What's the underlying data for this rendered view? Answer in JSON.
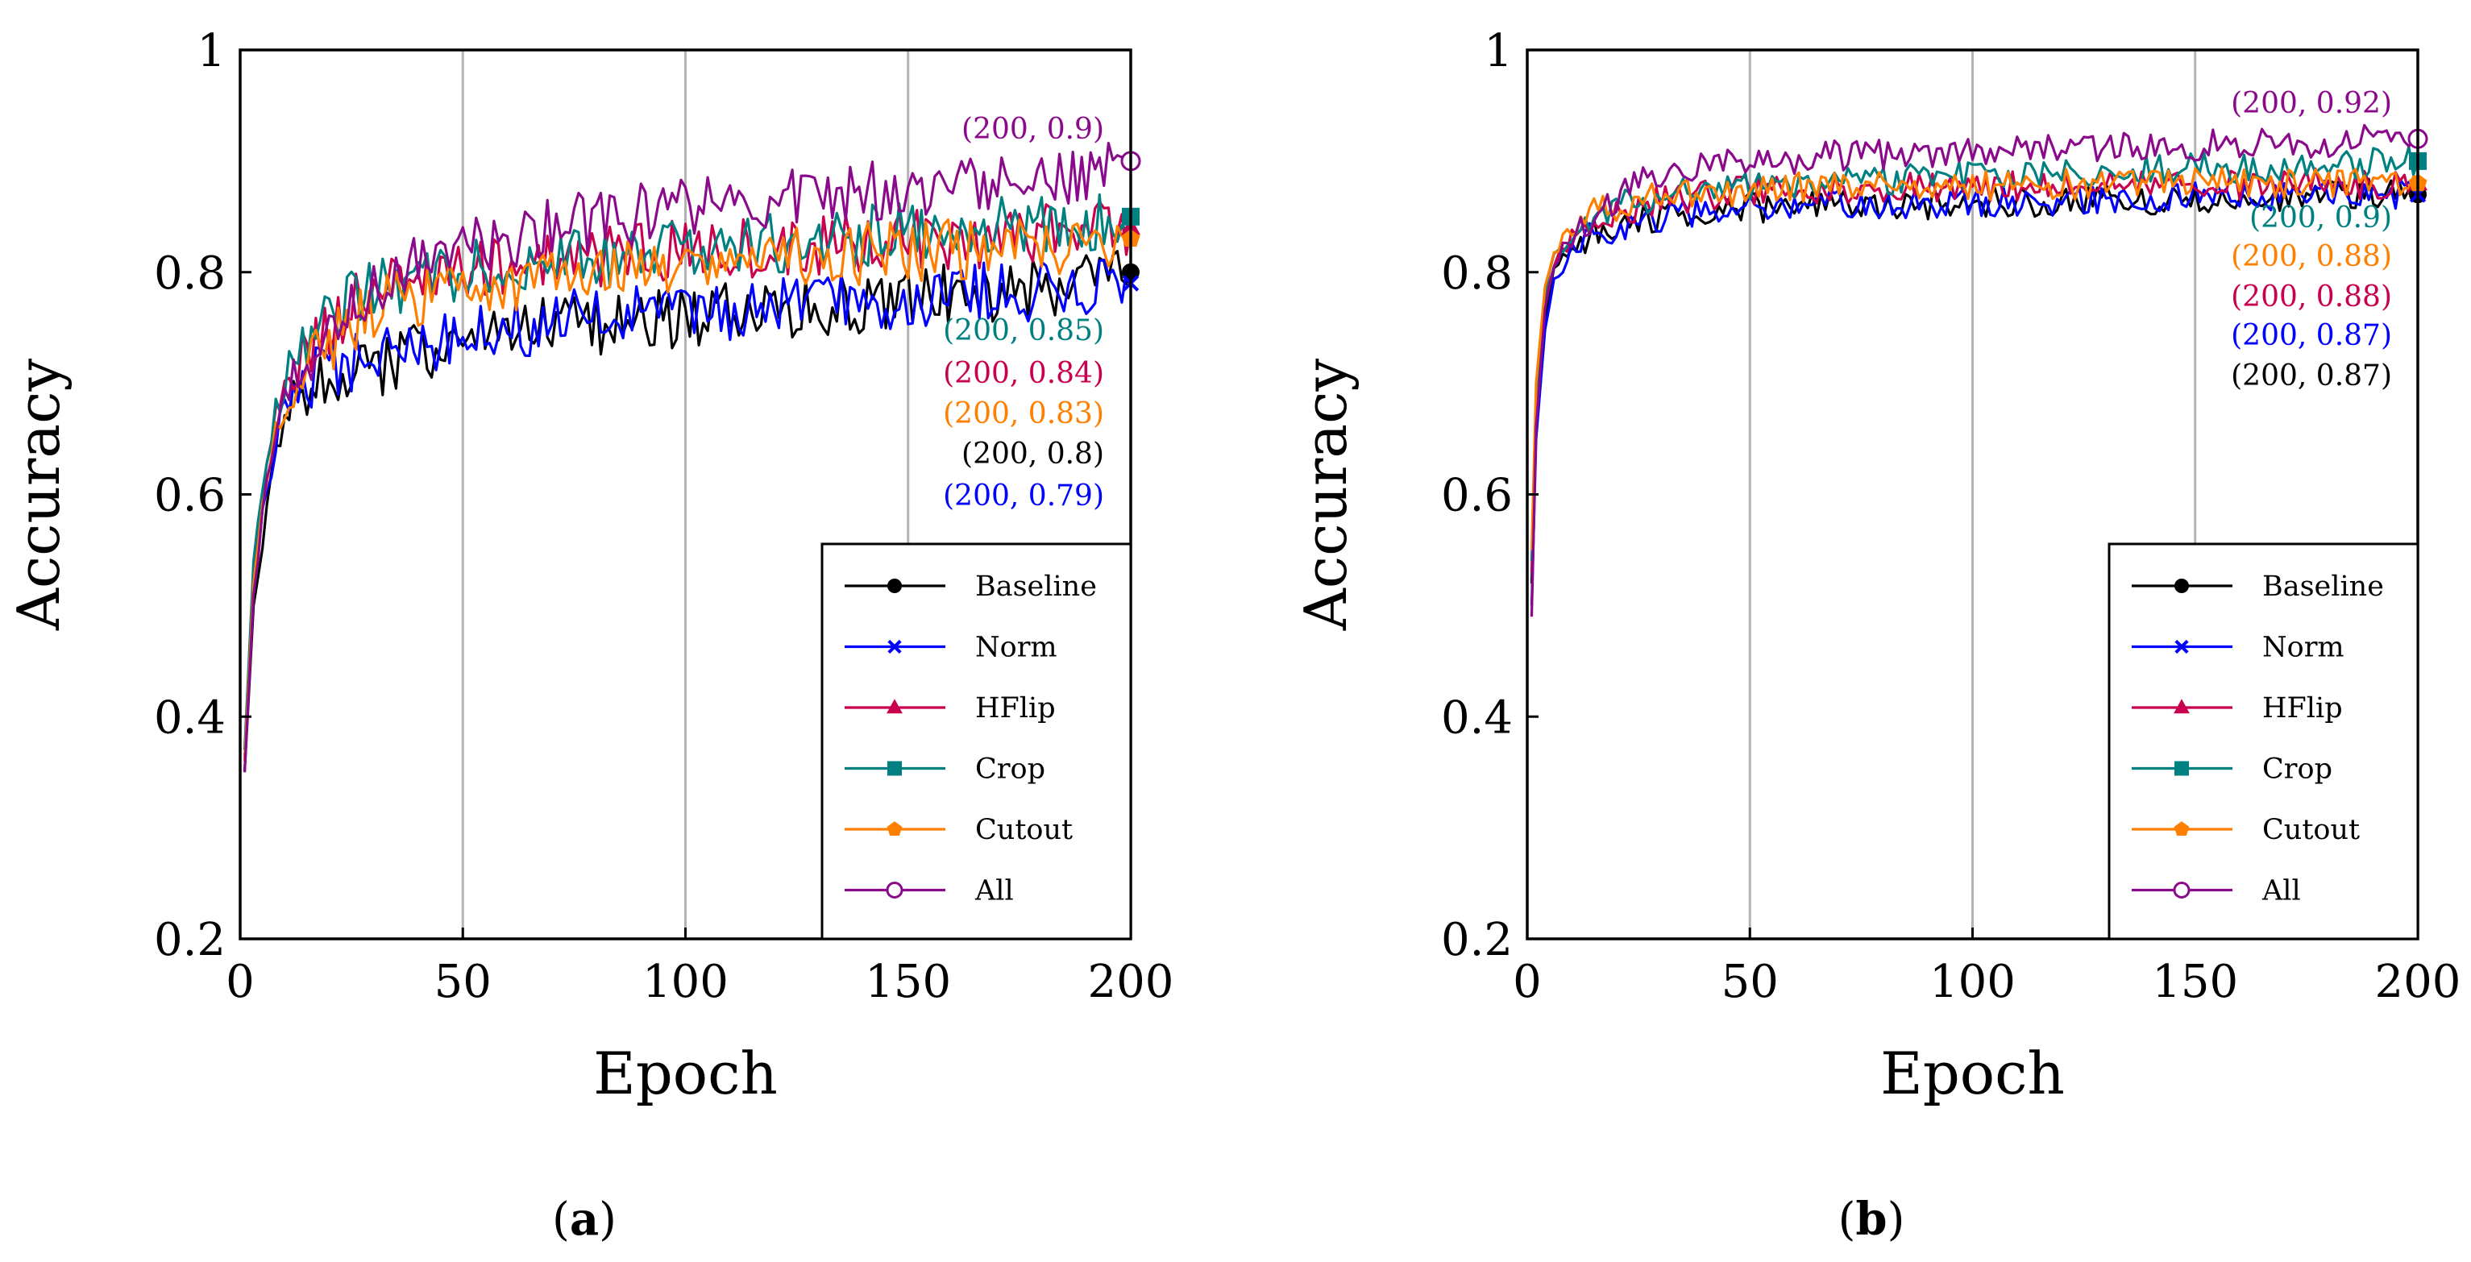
{
  "chart_data": [
    {
      "type": "line",
      "panel": "a",
      "caption": {
        "open": "(",
        "letter": "a",
        "close": ")"
      },
      "xlabel": "Epoch",
      "ylabel": "Accuracy",
      "xlim": [
        0,
        200
      ],
      "ylim": [
        0.2,
        1.0
      ],
      "xticks": [
        "0",
        "50",
        "100",
        "150",
        "200"
      ],
      "yticks": [
        "0.2",
        "0.4",
        "0.6",
        "0.8",
        "1"
      ],
      "grid": "vertical",
      "legend_position": "bottom-right",
      "series": [
        {
          "name": "Baseline",
          "color": "#000000",
          "marker": "filled-circle",
          "points": [
            [
              1,
              0.35
            ],
            [
              3,
              0.5
            ],
            [
              5,
              0.56
            ],
            [
              8,
              0.63
            ],
            [
              12,
              0.68
            ],
            [
              18,
              0.7
            ],
            [
              25,
              0.71
            ],
            [
              35,
              0.72
            ],
            [
              50,
              0.74
            ],
            [
              70,
              0.75
            ],
            [
              100,
              0.76
            ],
            [
              130,
              0.77
            ],
            [
              160,
              0.78
            ],
            [
              190,
              0.79
            ],
            [
              200,
              0.8
            ]
          ],
          "final_label": "(200, 0.8)"
        },
        {
          "name": "Norm",
          "color": "#0000ff",
          "marker": "cross",
          "points": [
            [
              1,
              0.36
            ],
            [
              3,
              0.52
            ],
            [
              5,
              0.58
            ],
            [
              8,
              0.65
            ],
            [
              12,
              0.69
            ],
            [
              18,
              0.71
            ],
            [
              25,
              0.72
            ],
            [
              35,
              0.73
            ],
            [
              50,
              0.745
            ],
            [
              70,
              0.755
            ],
            [
              100,
              0.765
            ],
            [
              130,
              0.77
            ],
            [
              160,
              0.78
            ],
            [
              190,
              0.785
            ],
            [
              200,
              0.79
            ]
          ],
          "final_label": "(200, 0.79)"
        },
        {
          "name": "HFlip",
          "color": "#c8004e",
          "marker": "filled-triangle",
          "points": [
            [
              1,
              0.36
            ],
            [
              3,
              0.53
            ],
            [
              5,
              0.6
            ],
            [
              8,
              0.67
            ],
            [
              12,
              0.71
            ],
            [
              18,
              0.74
            ],
            [
              25,
              0.77
            ],
            [
              35,
              0.79
            ],
            [
              50,
              0.8
            ],
            [
              70,
              0.81
            ],
            [
              100,
              0.82
            ],
            [
              130,
              0.825
            ],
            [
              160,
              0.83
            ],
            [
              190,
              0.835
            ],
            [
              200,
              0.84
            ]
          ],
          "final_label": "(200, 0.84)"
        },
        {
          "name": "Crop",
          "color": "#008080",
          "marker": "filled-square",
          "points": [
            [
              1,
              0.37
            ],
            [
              3,
              0.54
            ],
            [
              5,
              0.61
            ],
            [
              8,
              0.68
            ],
            [
              12,
              0.72
            ],
            [
              18,
              0.75
            ],
            [
              25,
              0.775
            ],
            [
              35,
              0.79
            ],
            [
              50,
              0.8
            ],
            [
              70,
              0.81
            ],
            [
              100,
              0.82
            ],
            [
              130,
              0.83
            ],
            [
              160,
              0.84
            ],
            [
              190,
              0.845
            ],
            [
              200,
              0.85
            ]
          ],
          "final_label": "(200, 0.85)"
        },
        {
          "name": "Cutout",
          "color": "#ff7f00",
          "marker": "filled-pentagon",
          "points": [
            [
              1,
              0.36
            ],
            [
              3,
              0.52
            ],
            [
              5,
              0.59
            ],
            [
              8,
              0.66
            ],
            [
              12,
              0.7
            ],
            [
              18,
              0.73
            ],
            [
              25,
              0.755
            ],
            [
              35,
              0.775
            ],
            [
              50,
              0.785
            ],
            [
              70,
              0.795
            ],
            [
              100,
              0.805
            ],
            [
              130,
              0.815
            ],
            [
              160,
              0.82
            ],
            [
              190,
              0.825
            ],
            [
              200,
              0.83
            ]
          ],
          "final_label": "(200, 0.83)"
        },
        {
          "name": "All",
          "color": "#8b0a8b",
          "marker": "open-circle",
          "points": [
            [
              1,
              0.35
            ],
            [
              3,
              0.51
            ],
            [
              5,
              0.58
            ],
            [
              8,
              0.66
            ],
            [
              12,
              0.7
            ],
            [
              18,
              0.74
            ],
            [
              25,
              0.77
            ],
            [
              35,
              0.8
            ],
            [
              50,
              0.82
            ],
            [
              70,
              0.84
            ],
            [
              100,
              0.86
            ],
            [
              130,
              0.87
            ],
            [
              160,
              0.88
            ],
            [
              190,
              0.89
            ],
            [
              200,
              0.9
            ]
          ],
          "final_label": "(200, 0.9)"
        }
      ]
    },
    {
      "type": "line",
      "panel": "b",
      "caption": {
        "open": "(",
        "letter": "b",
        "close": ")"
      },
      "xlabel": "Epoch",
      "ylabel": "Accuracy",
      "xlim": [
        0,
        200
      ],
      "ylim": [
        0.2,
        1.0
      ],
      "xticks": [
        "0",
        "50",
        "100",
        "150",
        "200"
      ],
      "yticks": [
        "0.2",
        "0.4",
        "0.6",
        "0.8",
        "1"
      ],
      "grid": "vertical",
      "legend_position": "bottom-right",
      "series": [
        {
          "name": "Baseline",
          "color": "#000000",
          "marker": "filled-circle",
          "points": [
            [
              1,
              0.52
            ],
            [
              2,
              0.66
            ],
            [
              4,
              0.76
            ],
            [
              6,
              0.8
            ],
            [
              10,
              0.82
            ],
            [
              15,
              0.835
            ],
            [
              25,
              0.845
            ],
            [
              40,
              0.855
            ],
            [
              60,
              0.86
            ],
            [
              90,
              0.86
            ],
            [
              120,
              0.865
            ],
            [
              150,
              0.865
            ],
            [
              180,
              0.87
            ],
            [
              200,
              0.87
            ]
          ],
          "final_label": "(200, 0.87)"
        },
        {
          "name": "Norm",
          "color": "#0000ff",
          "marker": "cross",
          "points": [
            [
              1,
              0.5
            ],
            [
              2,
              0.65
            ],
            [
              4,
              0.75
            ],
            [
              6,
              0.79
            ],
            [
              10,
              0.82
            ],
            [
              15,
              0.835
            ],
            [
              25,
              0.845
            ],
            [
              40,
              0.855
            ],
            [
              60,
              0.86
            ],
            [
              90,
              0.862
            ],
            [
              120,
              0.865
            ],
            [
              150,
              0.867
            ],
            [
              180,
              0.87
            ],
            [
              200,
              0.87
            ]
          ],
          "final_label": "(200, 0.87)"
        },
        {
          "name": "HFlip",
          "color": "#c8004e",
          "marker": "filled-triangle",
          "points": [
            [
              1,
              0.53
            ],
            [
              2,
              0.68
            ],
            [
              4,
              0.77
            ],
            [
              6,
              0.81
            ],
            [
              10,
              0.83
            ],
            [
              15,
              0.845
            ],
            [
              25,
              0.86
            ],
            [
              40,
              0.87
            ],
            [
              60,
              0.875
            ],
            [
              90,
              0.877
            ],
            [
              120,
              0.878
            ],
            [
              150,
              0.879
            ],
            [
              180,
              0.88
            ],
            [
              200,
              0.88
            ]
          ],
          "final_label": "(200, 0.88)"
        },
        {
          "name": "Crop",
          "color": "#008080",
          "marker": "filled-square",
          "points": [
            [
              1,
              0.54
            ],
            [
              2,
              0.69
            ],
            [
              4,
              0.78
            ],
            [
              6,
              0.815
            ],
            [
              10,
              0.835
            ],
            [
              15,
              0.85
            ],
            [
              25,
              0.865
            ],
            [
              40,
              0.875
            ],
            [
              60,
              0.88
            ],
            [
              90,
              0.885
            ],
            [
              120,
              0.89
            ],
            [
              150,
              0.893
            ],
            [
              180,
              0.896
            ],
            [
              200,
              0.9
            ]
          ],
          "final_label": "(200, 0.9)"
        },
        {
          "name": "Cutout",
          "color": "#ff7f00",
          "marker": "filled-pentagon",
          "points": [
            [
              1,
              0.55
            ],
            [
              2,
              0.7
            ],
            [
              4,
              0.79
            ],
            [
              6,
              0.82
            ],
            [
              10,
              0.84
            ],
            [
              15,
              0.855
            ],
            [
              25,
              0.865
            ],
            [
              40,
              0.872
            ],
            [
              60,
              0.876
            ],
            [
              90,
              0.878
            ],
            [
              120,
              0.879
            ],
            [
              150,
              0.88
            ],
            [
              180,
              0.88
            ],
            [
              200,
              0.88
            ]
          ],
          "final_label": "(200, 0.88)"
        },
        {
          "name": "All",
          "color": "#8b0a8b",
          "marker": "open-circle",
          "points": [
            [
              1,
              0.49
            ],
            [
              2,
              0.66
            ],
            [
              4,
              0.77
            ],
            [
              6,
              0.81
            ],
            [
              10,
              0.83
            ],
            [
              15,
              0.85
            ],
            [
              25,
              0.88
            ],
            [
              35,
              0.895
            ],
            [
              50,
              0.9
            ],
            [
              70,
              0.905
            ],
            [
              100,
              0.91
            ],
            [
              130,
              0.912
            ],
            [
              160,
              0.915
            ],
            [
              200,
              0.92
            ]
          ],
          "final_label": "(200, 0.92)"
        }
      ]
    }
  ]
}
